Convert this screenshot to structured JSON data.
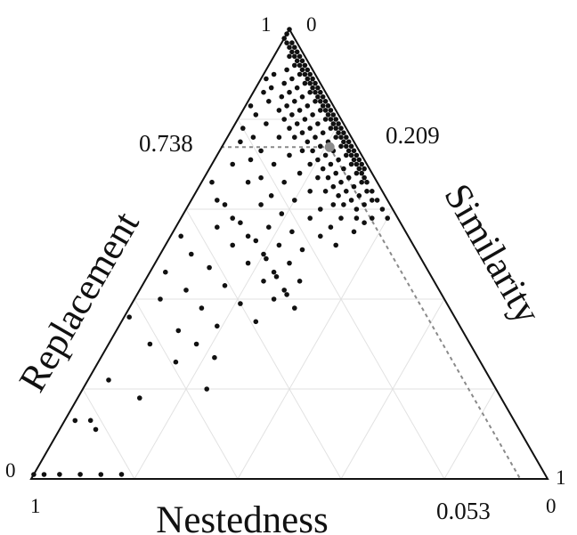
{
  "chart_data": {
    "type": "scatter",
    "subtype": "ternary",
    "axes": {
      "replacement": {
        "label": "Replacement",
        "min_label": "0",
        "max_label": "1"
      },
      "similarity": {
        "label": "Similarity",
        "min_label": "0",
        "max_label": "1"
      },
      "nestedness": {
        "label": "Nestedness",
        "min_label": "0",
        "max_label": "1"
      }
    },
    "grid": true,
    "grid_step": 0.2,
    "mean_point": {
      "similarity": 0.209,
      "replacement": 0.738,
      "nestedness": 0.053,
      "labels": {
        "replacement": "0.738",
        "similarity": "0.209",
        "nestedness": "0.053"
      }
    },
    "points_format": "[similarity, replacement]",
    "points": [
      [
        0,
        1
      ],
      [
        0,
        0.99
      ],
      [
        0,
        0.98
      ],
      [
        0.01,
        0.97
      ],
      [
        0.02,
        0.96
      ],
      [
        0.03,
        0.95
      ],
      [
        0.04,
        0.94
      ],
      [
        0.05,
        0.93
      ],
      [
        0.06,
        0.92
      ],
      [
        0.07,
        0.91
      ],
      [
        0.08,
        0.9
      ],
      [
        0.09,
        0.89
      ],
      [
        0.1,
        0.88
      ],
      [
        0.11,
        0.87
      ],
      [
        0.12,
        0.86
      ],
      [
        0.13,
        0.85
      ],
      [
        0.14,
        0.84
      ],
      [
        0.15,
        0.83
      ],
      [
        0.16,
        0.82
      ],
      [
        0.17,
        0.81
      ],
      [
        0.18,
        0.8
      ],
      [
        0.19,
        0.79
      ],
      [
        0.2,
        0.78
      ],
      [
        0.21,
        0.77
      ],
      [
        0.22,
        0.76
      ],
      [
        0.23,
        0.75
      ],
      [
        0.24,
        0.74
      ],
      [
        0.25,
        0.73
      ],
      [
        0.26,
        0.72
      ],
      [
        0.27,
        0.71
      ],
      [
        0.28,
        0.7
      ],
      [
        0.29,
        0.69
      ],
      [
        0.3,
        0.68
      ],
      [
        0.31,
        0.67
      ],
      [
        0.32,
        0.66
      ],
      [
        0.34,
        0.64
      ],
      [
        0.36,
        0.62
      ],
      [
        0.38,
        0.6
      ],
      [
        0.4,
        0.58
      ],
      [
        0.02,
        0.97
      ],
      [
        0.03,
        0.96
      ],
      [
        0.04,
        0.95
      ],
      [
        0.05,
        0.94
      ],
      [
        0.06,
        0.93
      ],
      [
        0.07,
        0.92
      ],
      [
        0.08,
        0.91
      ],
      [
        0.09,
        0.9
      ],
      [
        0.1,
        0.89
      ],
      [
        0.11,
        0.88
      ],
      [
        0.12,
        0.87
      ],
      [
        0.13,
        0.86
      ],
      [
        0.14,
        0.85
      ],
      [
        0.15,
        0.84
      ],
      [
        0.16,
        0.83
      ],
      [
        0.17,
        0.82
      ],
      [
        0.18,
        0.81
      ],
      [
        0.19,
        0.8
      ],
      [
        0.2,
        0.79
      ],
      [
        0.21,
        0.78
      ],
      [
        0.22,
        0.77
      ],
      [
        0.23,
        0.76
      ],
      [
        0.24,
        0.75
      ],
      [
        0.25,
        0.74
      ],
      [
        0.26,
        0.73
      ],
      [
        0.27,
        0.72
      ],
      [
        0.28,
        0.71
      ],
      [
        0.29,
        0.7
      ],
      [
        0.3,
        0.69
      ],
      [
        0.03,
        0.94
      ],
      [
        0.05,
        0.92
      ],
      [
        0.07,
        0.9
      ],
      [
        0.09,
        0.88
      ],
      [
        0.11,
        0.86
      ],
      [
        0.13,
        0.84
      ],
      [
        0.15,
        0.82
      ],
      [
        0.17,
        0.8
      ],
      [
        0.19,
        0.78
      ],
      [
        0.21,
        0.76
      ],
      [
        0.23,
        0.74
      ],
      [
        0.25,
        0.72
      ],
      [
        0.27,
        0.7
      ],
      [
        0.29,
        0.68
      ],
      [
        0.31,
        0.66
      ],
      [
        0.33,
        0.64
      ],
      [
        0.35,
        0.62
      ],
      [
        0.04,
        0.91
      ],
      [
        0.06,
        0.89
      ],
      [
        0.08,
        0.87
      ],
      [
        0.1,
        0.85
      ],
      [
        0.12,
        0.83
      ],
      [
        0.14,
        0.81
      ],
      [
        0.16,
        0.79
      ],
      [
        0.18,
        0.77
      ],
      [
        0.2,
        0.75
      ],
      [
        0.22,
        0.73
      ],
      [
        0.24,
        0.71
      ],
      [
        0.26,
        0.69
      ],
      [
        0.28,
        0.67
      ],
      [
        0.3,
        0.65
      ],
      [
        0.32,
        0.63
      ],
      [
        0.34,
        0.61
      ],
      [
        0.37,
        0.58
      ],
      [
        0.02,
        0.9
      ],
      [
        0.05,
        0.88
      ],
      [
        0.07,
        0.86
      ],
      [
        0.09,
        0.84
      ],
      [
        0.11,
        0.82
      ],
      [
        0.13,
        0.8
      ],
      [
        0.15,
        0.78
      ],
      [
        0.17,
        0.76
      ],
      [
        0.19,
        0.74
      ],
      [
        0.21,
        0.72
      ],
      [
        0.23,
        0.7
      ],
      [
        0.25,
        0.68
      ],
      [
        0.27,
        0.66
      ],
      [
        0.29,
        0.64
      ],
      [
        0.31,
        0.62
      ],
      [
        0.33,
        0.6
      ],
      [
        0.36,
        0.57
      ],
      [
        0.01,
        0.89
      ],
      [
        0.03,
        0.87
      ],
      [
        0.06,
        0.85
      ],
      [
        0.08,
        0.83
      ],
      [
        0.1,
        0.81
      ],
      [
        0.12,
        0.79
      ],
      [
        0.14,
        0.77
      ],
      [
        0.16,
        0.75
      ],
      [
        0.18,
        0.73
      ],
      [
        0.2,
        0.71
      ],
      [
        0.22,
        0.69
      ],
      [
        0.24,
        0.67
      ],
      [
        0.26,
        0.65
      ],
      [
        0.28,
        0.63
      ],
      [
        0.3,
        0.61
      ],
      [
        0.34,
        0.58
      ],
      [
        0.02,
        0.86
      ],
      [
        0.04,
        0.84
      ],
      [
        0.07,
        0.82
      ],
      [
        0.09,
        0.8
      ],
      [
        0.11,
        0.78
      ],
      [
        0.13,
        0.76
      ],
      [
        0.16,
        0.73
      ],
      [
        0.19,
        0.7
      ],
      [
        0.22,
        0.67
      ],
      [
        0.25,
        0.64
      ],
      [
        0.28,
        0.61
      ],
      [
        0.31,
        0.58
      ],
      [
        0.35,
        0.55
      ],
      [
        0.01,
        0.83
      ],
      [
        0.03,
        0.81
      ],
      [
        0.06,
        0.79
      ],
      [
        0.1,
        0.76
      ],
      [
        0.14,
        0.72
      ],
      [
        0.18,
        0.68
      ],
      [
        0.22,
        0.64
      ],
      [
        0.26,
        0.6
      ],
      [
        0.3,
        0.56
      ],
      [
        0.02,
        0.78
      ],
      [
        0.05,
        0.76
      ],
      [
        0.08,
        0.73
      ],
      [
        0.12,
        0.7
      ],
      [
        0.16,
        0.66
      ],
      [
        0.2,
        0.62
      ],
      [
        0.25,
        0.58
      ],
      [
        0.29,
        0.54
      ],
      [
        0.33,
        0.52
      ],
      [
        0.03,
        0.75
      ],
      [
        0.07,
        0.71
      ],
      [
        0.11,
        0.67
      ],
      [
        0.15,
        0.63
      ],
      [
        0.19,
        0.59
      ],
      [
        0.23,
        0.55
      ],
      [
        0.27,
        0.51
      ],
      [
        0.04,
        0.7
      ],
      [
        0.09,
        0.66
      ],
      [
        0.14,
        0.61
      ],
      [
        0.18,
        0.56
      ],
      [
        0.22,
        0.52
      ],
      [
        0.26,
        0.48
      ],
      [
        0.3,
        0.44
      ],
      [
        0.02,
        0.66
      ],
      [
        0.07,
        0.61
      ],
      [
        0.12,
        0.57
      ],
      [
        0.17,
        0.53
      ],
      [
        0.21,
        0.49
      ],
      [
        0.25,
        0.45
      ],
      [
        0.29,
        0.41
      ],
      [
        0.05,
        0.62
      ],
      [
        0.1,
        0.58
      ],
      [
        0.15,
        0.54
      ],
      [
        0.2,
        0.5
      ],
      [
        0.24,
        0.46
      ],
      [
        0.28,
        0.42
      ],
      [
        0.32,
        0.38
      ],
      [
        0.08,
        0.56
      ],
      [
        0.13,
        0.52
      ],
      [
        0.18,
        0.48
      ],
      [
        0.23,
        0.44
      ],
      [
        0.27,
        0.4
      ],
      [
        0.02,
        0.54
      ],
      [
        0.06,
        0.5
      ],
      [
        0.11,
        0.47
      ],
      [
        0.16,
        0.43
      ],
      [
        0.21,
        0.39
      ],
      [
        0.26,
        0.35
      ],
      [
        0.03,
        0.46
      ],
      [
        0.09,
        0.42
      ],
      [
        0.14,
        0.38
      ],
      [
        0.19,
        0.34
      ],
      [
        0.05,
        0.4
      ],
      [
        0.12,
        0.33
      ],
      [
        0.17,
        0.3
      ],
      [
        0.22,
        0.27
      ],
      [
        0.01,
        0.36
      ],
      [
        0.08,
        0.3
      ],
      [
        0.15,
        0.26
      ],
      [
        0.04,
        0.22
      ],
      [
        0.24,
        0.2
      ],
      [
        0.12,
        0.18
      ],
      [
        0.02,
        0.13
      ],
      [
        0.05,
        0.13
      ],
      [
        0.07,
        0.11
      ],
      [
        0.0,
        0.01
      ],
      [
        0.02,
        0.01
      ],
      [
        0.05,
        0.01
      ],
      [
        0.09,
        0.01
      ],
      [
        0.13,
        0.01
      ],
      [
        0.17,
        0.01
      ]
    ]
  }
}
